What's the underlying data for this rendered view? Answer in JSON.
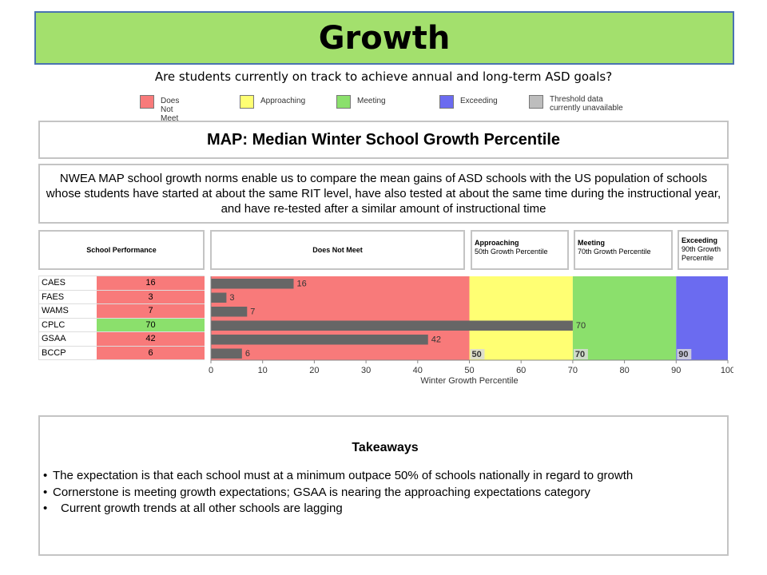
{
  "header": {
    "title": "Growth",
    "subtitle": "Are students currently on track to achieve annual and long-term ASD goals?"
  },
  "legend": [
    {
      "label": "Does Not Meet",
      "color": "#f87a7a"
    },
    {
      "label": "Approaching",
      "color": "#ffff73"
    },
    {
      "label": "Meeting",
      "color": "#8be06c"
    },
    {
      "label": "Exceeding",
      "color": "#6b6bf0"
    },
    {
      "label": "Threshold data currently unavailable",
      "color": "#bdbdbd"
    }
  ],
  "panel": {
    "title": "MAP: Median Winter School Growth Percentile",
    "description": "NWEA MAP school growth norms enable us to compare the mean gains of ASD schools with the US population of schools whose students have started at about the same RIT level, have also tested at about the same time during the instructional year, and have re-tested after a similar amount of instructional time"
  },
  "table": {
    "header": "School Performance",
    "rows": [
      {
        "school": "CAES",
        "value": "16",
        "color": "#f87a7a"
      },
      {
        "school": "FAES",
        "value": "3",
        "color": "#f87a7a"
      },
      {
        "school": "WAMS",
        "value": "7",
        "color": "#f87a7a"
      },
      {
        "school": "CPLC",
        "value": "70",
        "color": "#8be06c"
      },
      {
        "school": "GSAA",
        "value": "42",
        "color": "#f87a7a"
      },
      {
        "school": "BCCP",
        "value": "6",
        "color": "#f87a7a"
      }
    ]
  },
  "bands": {
    "does_not_meet": {
      "title": "Does Not Meet"
    },
    "approaching": {
      "title": "Approaching",
      "sub": "50th Growth Percentile"
    },
    "meeting": {
      "title": "Meeting",
      "sub": "70th Growth Percentile"
    },
    "exceeding": {
      "title": "Exceeding",
      "sub": "90th Growth Percentile"
    }
  },
  "chart_data": {
    "type": "bar",
    "orientation": "horizontal",
    "categories": [
      "CAES",
      "FAES",
      "WAMS",
      "CPLC",
      "GSAA",
      "BCCP"
    ],
    "values": [
      16,
      3,
      7,
      70,
      42,
      6
    ],
    "xlabel": "Winter Growth Percentile",
    "xlim": [
      0,
      100
    ],
    "xticks": [
      0,
      10,
      20,
      30,
      40,
      50,
      60,
      70,
      80,
      90,
      100
    ],
    "bar_color": "#666666",
    "bands": [
      {
        "from": 0,
        "to": 50,
        "color": "#f87a7a"
      },
      {
        "from": 50,
        "to": 70,
        "color": "#ffff73"
      },
      {
        "from": 70,
        "to": 90,
        "color": "#8be06c"
      },
      {
        "from": 90,
        "to": 100,
        "color": "#6b6bf0"
      }
    ],
    "threshold_labels": [
      50,
      70,
      90
    ]
  },
  "takeaways": {
    "title": "Takeaways",
    "items": [
      "The expectation is that each school must at a minimum outpace 50% of schools nationally in regard to growth",
      "Cornerstone is meeting growth expectations; GSAA is nearing the approaching expectations category",
      "Current growth trends at all other schools are lagging"
    ]
  }
}
